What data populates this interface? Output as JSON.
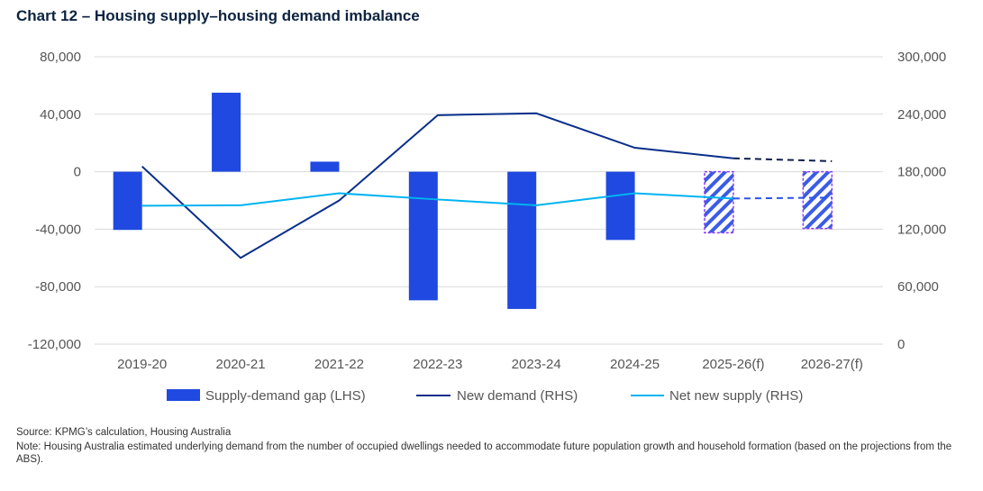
{
  "title": "Chart 12 – Housing supply–housing demand imbalance",
  "source": "Source: KPMG’s calculation, Housing Australia",
  "note": "Note: Housing Australia estimated underlying demand from the number of occupied dwellings needed to accommodate future population growth and household formation (based on the projections from the ABS).",
  "colors": {
    "gap": "#1f49e0",
    "demand": "#0a2f8a",
    "supply": "#00b4f0",
    "forecast_hatch": "#3a5ce6",
    "forecast_border": "#8a3cf0",
    "supply_forecast": "#2a55e6",
    "demand_forecast": "#0c1e4a"
  },
  "chart_data": {
    "type": "bar+line",
    "title": "Chart 12 – Housing supply–housing demand imbalance",
    "categories": [
      "2019-20",
      "2020-21",
      "2021-22",
      "2022-23",
      "2023-24",
      "2024-25",
      "2025-26(f)",
      "2026-27(f)"
    ],
    "forecast_from_index": 6,
    "left_axis": {
      "ylim": [
        -120000,
        80000
      ],
      "ticks": [
        "80,000",
        "40,000",
        "0",
        "-40,000",
        "-80,000",
        "-120,000"
      ],
      "tick_values": [
        80000,
        40000,
        0,
        -40000,
        -80000,
        -120000
      ]
    },
    "right_axis": {
      "ylim": [
        0,
        300000
      ],
      "ticks": [
        "300,000",
        "240,000",
        "180,000",
        "120,000",
        "60,000",
        "0"
      ]
    },
    "grid": true,
    "legend_position": "bottom",
    "series": [
      {
        "name": "Supply-demand gap (LHS)",
        "type": "bar",
        "axis": "left",
        "values": [
          -40500,
          55000,
          7000,
          -89500,
          -95500,
          -47500,
          -42500,
          -39500
        ]
      },
      {
        "name": "New demand (RHS)",
        "type": "line",
        "axis": "right",
        "values": [
          185500,
          90000,
          150000,
          239000,
          241000,
          205000,
          194000,
          191000
        ]
      },
      {
        "name": "Net new supply (RHS)",
        "type": "line",
        "axis": "right",
        "values": [
          144500,
          145000,
          157500,
          151000,
          145000,
          157500,
          152000,
          153000
        ]
      }
    ]
  }
}
